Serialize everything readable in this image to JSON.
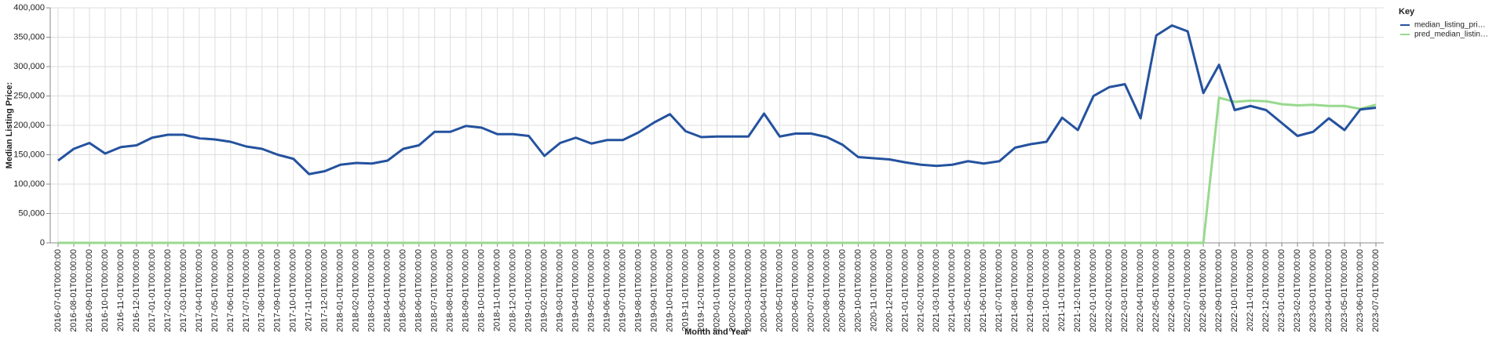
{
  "chart_data": {
    "type": "line",
    "x_label": "Month and Year",
    "y_label": "Median Listing Price:",
    "legend_title": "Key",
    "legend": "top-right",
    "grid": true,
    "categories": [
      "2016-07-01T00:00:00",
      "2016-08-01T00:00:00",
      "2016-09-01T00:00:00",
      "2016-10-01T00:00:00",
      "2016-11-01T00:00:00",
      "2016-12-01T00:00:00",
      "2017-01-01T00:00:00",
      "2017-02-01T00:00:00",
      "2017-03-01T00:00:00",
      "2017-04-01T00:00:00",
      "2017-05-01T00:00:00",
      "2017-06-01T00:00:00",
      "2017-07-01T00:00:00",
      "2017-08-01T00:00:00",
      "2017-09-01T00:00:00",
      "2017-10-01T00:00:00",
      "2017-11-01T00:00:00",
      "2017-12-01T00:00:00",
      "2018-01-01T00:00:00",
      "2018-02-01T00:00:00",
      "2018-03-01T00:00:00",
      "2018-04-01T00:00:00",
      "2018-05-01T00:00:00",
      "2018-06-01T00:00:00",
      "2018-07-01T00:00:00",
      "2018-08-01T00:00:00",
      "2018-09-01T00:00:00",
      "2018-10-01T00:00:00",
      "2018-11-01T00:00:00",
      "2018-12-01T00:00:00",
      "2019-01-01T00:00:00",
      "2019-02-01T00:00:00",
      "2019-03-01T00:00:00",
      "2019-04-01T00:00:00",
      "2019-05-01T00:00:00",
      "2019-06-01T00:00:00",
      "2019-07-01T00:00:00",
      "2019-08-01T00:00:00",
      "2019-09-01T00:00:00",
      "2019-10-01T00:00:00",
      "2019-11-01T00:00:00",
      "2019-12-01T00:00:00",
      "2020-01-01T00:00:00",
      "2020-02-01T00:00:00",
      "2020-03-01T00:00:00",
      "2020-04-01T00:00:00",
      "2020-05-01T00:00:00",
      "2020-06-01T00:00:00",
      "2020-07-01T00:00:00",
      "2020-08-01T00:00:00",
      "2020-09-01T00:00:00",
      "2020-10-01T00:00:00",
      "2020-11-01T00:00:00",
      "2020-12-01T00:00:00",
      "2021-01-01T00:00:00",
      "2021-02-01T00:00:00",
      "2021-03-01T00:00:00",
      "2021-04-01T00:00:00",
      "2021-05-01T00:00:00",
      "2021-06-01T00:00:00",
      "2021-07-01T00:00:00",
      "2021-08-01T00:00:00",
      "2021-09-01T00:00:00",
      "2021-10-01T00:00:00",
      "2021-11-01T00:00:00",
      "2021-12-01T00:00:00",
      "2022-01-01T00:00:00",
      "2022-02-01T00:00:00",
      "2022-03-01T00:00:00",
      "2022-04-01T00:00:00",
      "2022-05-01T00:00:00",
      "2022-06-01T00:00:00",
      "2022-07-01T00:00:00",
      "2022-08-01T00:00:00",
      "2022-09-01T00:00:00",
      "2022-10-01T00:00:00",
      "2022-11-01T00:00:00",
      "2022-12-01T00:00:00",
      "2023-01-01T00:00:00",
      "2023-02-01T00:00:00",
      "2023-03-01T00:00:00",
      "2023-04-01T00:00:00",
      "2023-05-01T00:00:00",
      "2023-06-01T00:00:00",
      "2023-07-01T00:00:00"
    ],
    "series": [
      {
        "name": "median_listing_pri…",
        "color": "#24529e",
        "values": [
          140000,
          160000,
          170000,
          152000,
          163000,
          166000,
          179000,
          184000,
          184000,
          178000,
          176000,
          172000,
          164000,
          160000,
          150000,
          143000,
          117000,
          122000,
          133000,
          136000,
          135000,
          140000,
          160000,
          166000,
          189000,
          189000,
          199000,
          196000,
          185000,
          185000,
          182000,
          148000,
          170000,
          179000,
          169000,
          175000,
          175000,
          188000,
          205000,
          219000,
          190000,
          180000,
          181000,
          181000,
          181000,
          220000,
          181000,
          186000,
          186000,
          180000,
          167000,
          146000,
          144000,
          142000,
          137000,
          133000,
          131000,
          133000,
          139000,
          135000,
          139000,
          162000,
          168000,
          172000,
          213000,
          192000,
          250000,
          265000,
          270000,
          212000,
          353000,
          370000,
          360000,
          255000,
          303000,
          226000,
          233000,
          226000,
          204000,
          182000,
          189000,
          212000,
          192000,
          227000,
          230000
        ]
      },
      {
        "name": "pred_median_listin…",
        "color": "#98d98e",
        "values": [
          0,
          0,
          0,
          0,
          0,
          0,
          0,
          0,
          0,
          0,
          0,
          0,
          0,
          0,
          0,
          0,
          0,
          0,
          0,
          0,
          0,
          0,
          0,
          0,
          0,
          0,
          0,
          0,
          0,
          0,
          0,
          0,
          0,
          0,
          0,
          0,
          0,
          0,
          0,
          0,
          0,
          0,
          0,
          0,
          0,
          0,
          0,
          0,
          0,
          0,
          0,
          0,
          0,
          0,
          0,
          0,
          0,
          0,
          0,
          0,
          0,
          0,
          0,
          0,
          0,
          0,
          0,
          0,
          0,
          0,
          0,
          0,
          0,
          0,
          247000,
          240000,
          242000,
          241000,
          236000,
          234000,
          235000,
          233000,
          233000,
          228000,
          235000
        ]
      }
    ],
    "ylim": [
      0,
      400000
    ],
    "yticks": [
      0,
      {
        "value": 50000,
        "label": "50,000"
      },
      {
        "value": 100000,
        "label": "100,000"
      },
      {
        "value": 150000,
        "label": "150,000"
      },
      {
        "value": 200000,
        "label": "200,000"
      },
      {
        "value": 250000,
        "label": "250,000"
      },
      {
        "value": 300000,
        "label": "300,000"
      },
      {
        "value": 350000,
        "label": "350,000"
      },
      {
        "value": 400000,
        "label": "400,000"
      }
    ]
  }
}
